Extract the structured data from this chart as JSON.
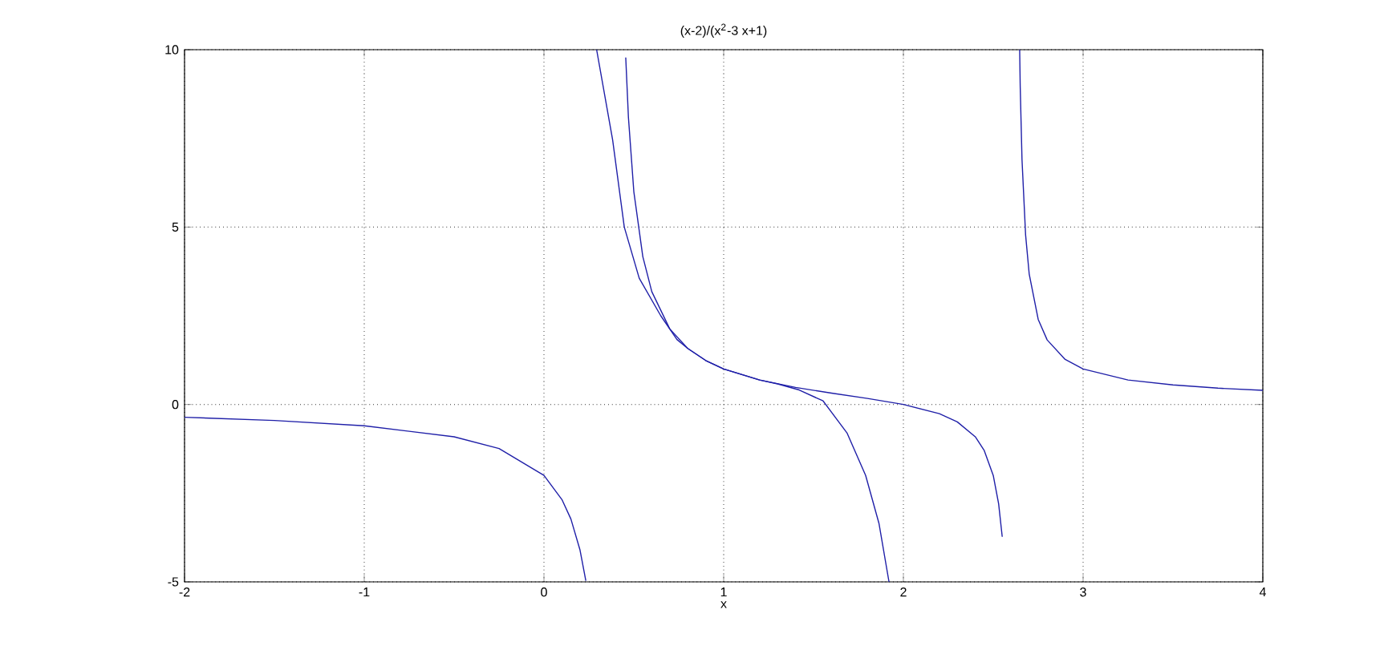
{
  "chart_data": {
    "type": "line",
    "title": "(x-2)/(x$^{2}$-3 x+1)",
    "xlabel": "x",
    "xlim": [
      -2,
      4
    ],
    "ylim": [
      -5,
      10
    ],
    "xticks": [
      -2,
      -1,
      0,
      1,
      2,
      3,
      4
    ],
    "yticks": [
      -5,
      0,
      5,
      10
    ],
    "grid": true,
    "series": [
      {
        "color": "#1f1fa8",
        "x": [
          -2,
          -1.5,
          -1,
          -0.5,
          -0.25,
          0,
          0.1,
          0.15,
          0.2,
          0.233,
          0.35,
          0.455,
          0.47,
          0.5,
          0.55,
          0.6,
          0.7,
          0.8,
          0.9,
          1.0,
          1.2,
          1.4,
          1.6,
          1.8,
          2.0,
          2.2,
          2.3,
          2.4,
          2.45,
          2.5,
          2.53,
          2.55,
          2.6,
          2.647,
          2.65,
          2.66,
          2.68,
          2.7,
          2.75,
          2.8,
          2.9,
          3,
          3.25,
          3.5,
          3.75,
          4
        ],
        "values": [
          -0.36,
          -0.45,
          -0.6,
          -0.91,
          -1.24,
          -2,
          -2.68,
          -3.23,
          -4.09,
          -4.97,
          null,
          9.78,
          8.09,
          6,
          4.17,
          3.18,
          2.13,
          1.58,
          1.24,
          1,
          0.69,
          0.48,
          0.32,
          0.17,
          0,
          -0.26,
          -0.49,
          -0.91,
          -1.3,
          -2,
          -2.8,
          -3.73,
          null,
          10,
          8.97,
          6.9,
          4.78,
          3.68,
          2.4,
          1.82,
          1.27,
          1,
          0.69,
          0.55,
          0.46,
          0.4
        ]
      },
      {
        "color": "#1f1fa8",
        "x": [
          0.293,
          0.382,
          0.447,
          0.53,
          0.65,
          0.74,
          0.8,
          0.9,
          1.0,
          1.2,
          1.3,
          1.42,
          1.553,
          1.686,
          1.79,
          1.864,
          1.92
        ],
        "values": [
          10,
          7.46,
          5,
          3.56,
          2.5,
          1.83,
          1.58,
          1.24,
          1,
          0.69,
          0.58,
          0.41,
          0.1,
          -0.8,
          -2.0,
          -3.35,
          -5
        ]
      }
    ]
  }
}
